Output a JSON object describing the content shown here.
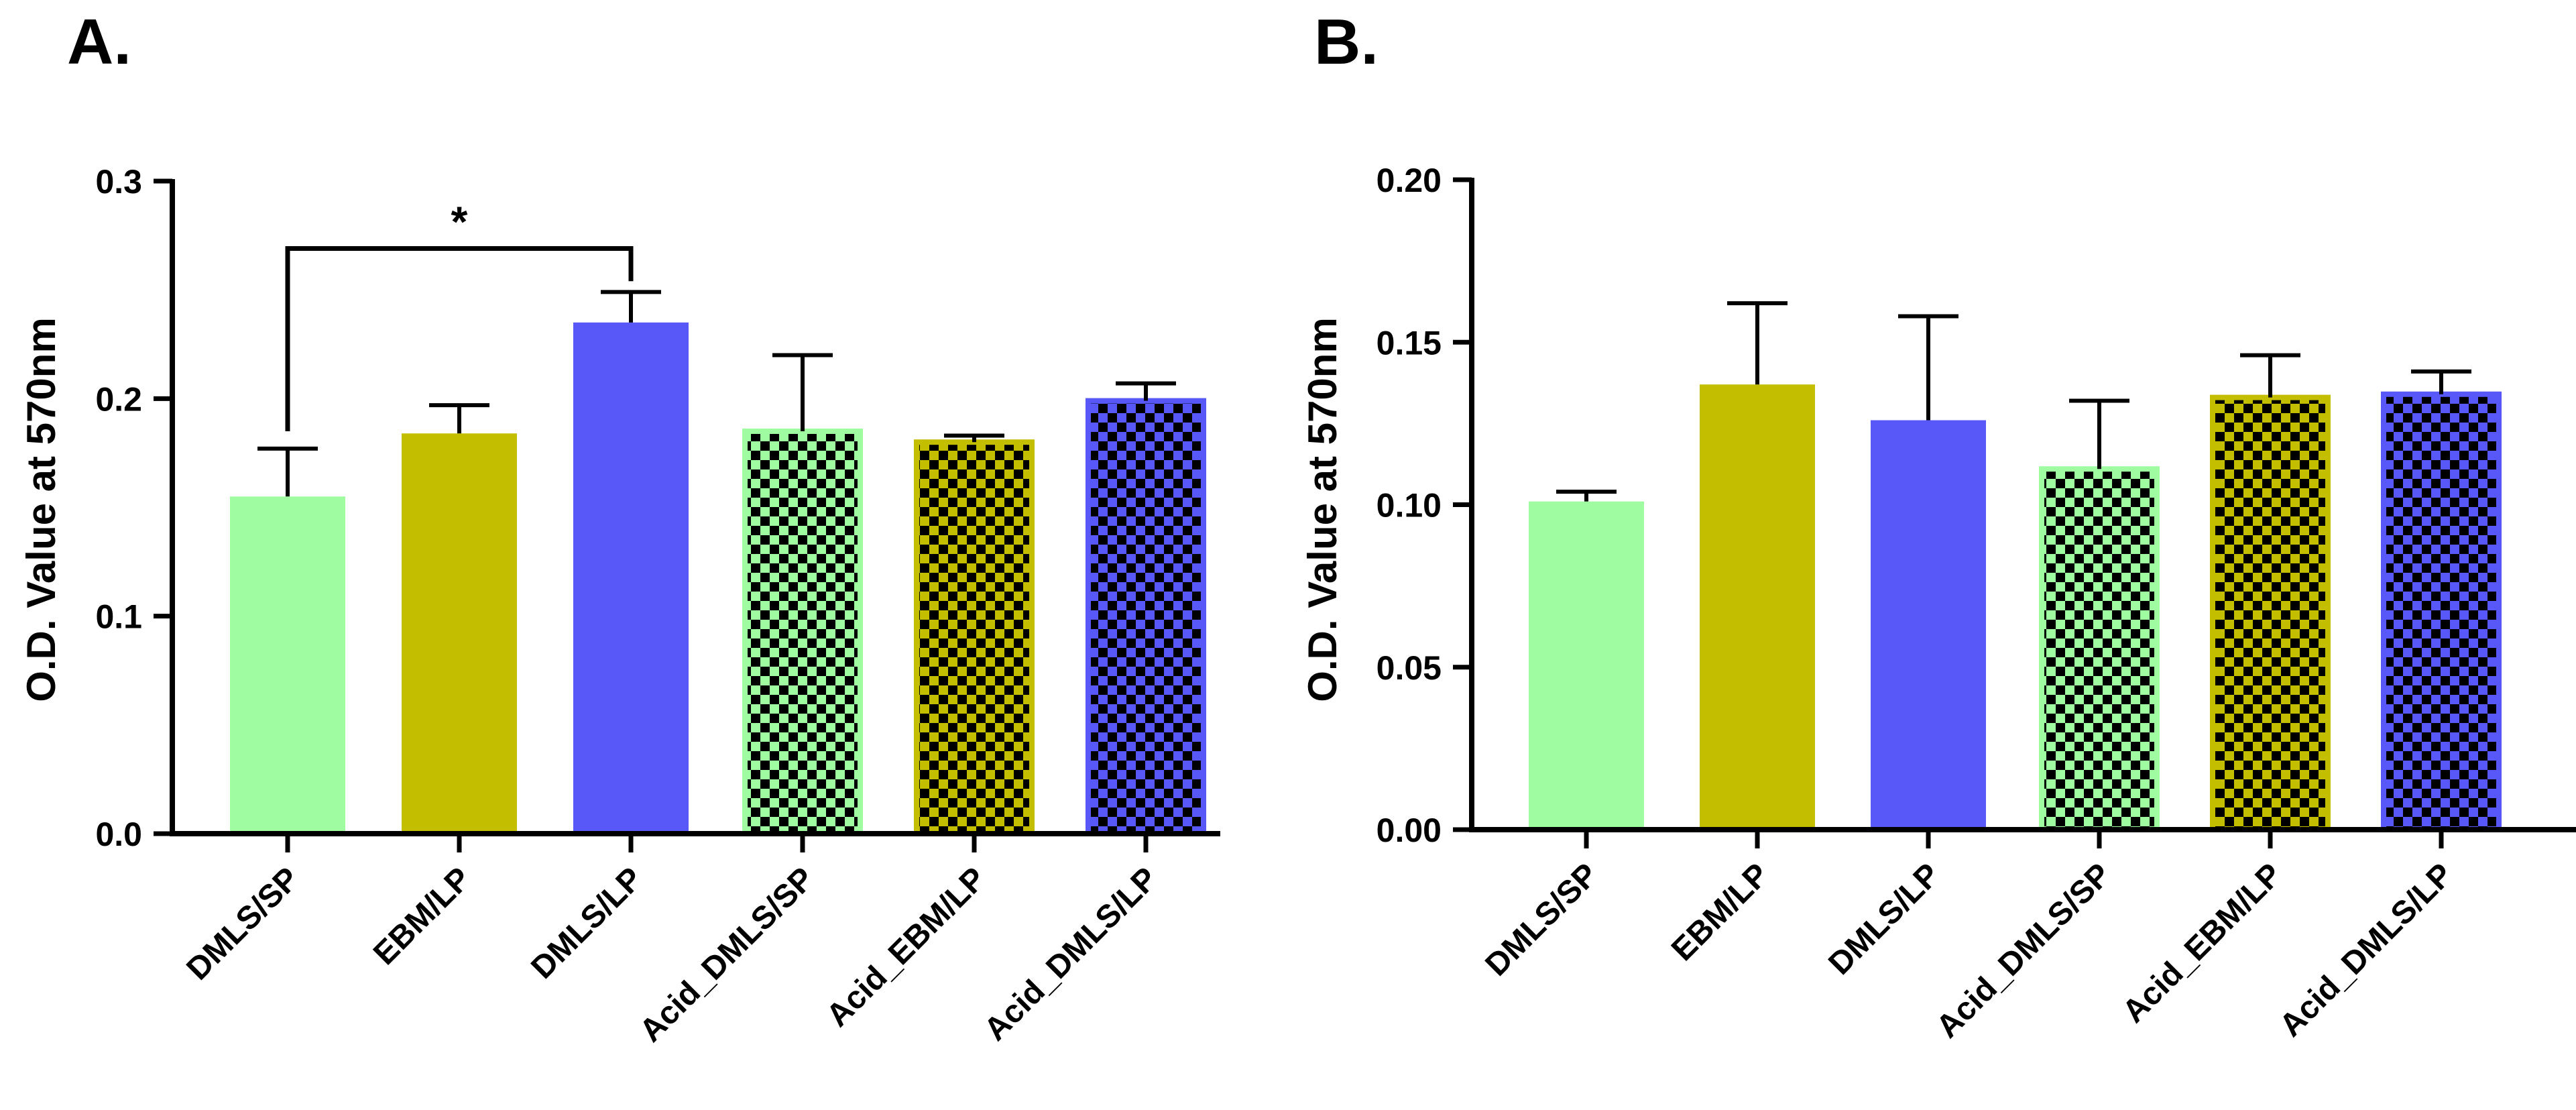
{
  "chart_data": [
    {
      "panel_label": "A.",
      "type": "bar",
      "ylabel": "O.D. Value at 570nm",
      "ylim": [
        0,
        0.3
      ],
      "yticks": [
        0.0,
        0.1,
        0.2,
        0.3
      ],
      "ytick_labels": [
        "0.0",
        "0.1",
        "0.2",
        "0.3"
      ],
      "categories": [
        "DMLS/SP",
        "EBM/LP",
        "DMLS/LP",
        "Acid_DMLS/SP",
        "Acid_EBM/LP",
        "Acid_DMLS/LP"
      ],
      "values": [
        0.155,
        0.184,
        0.235,
        0.185,
        0.18,
        0.199
      ],
      "errors": [
        0.022,
        0.013,
        0.014,
        0.035,
        0.003,
        0.008
      ],
      "colors": [
        "#a0fca0",
        "#c4be00",
        "#5858f8",
        "#a0fca0",
        "#c4be00",
        "#5858f8"
      ],
      "patterned": [
        false,
        false,
        false,
        true,
        true,
        true
      ],
      "significance": [
        {
          "from": 0,
          "to": 2,
          "label": "*"
        }
      ]
    },
    {
      "panel_label": "B.",
      "type": "bar",
      "ylabel": "O.D. Value at 570nm",
      "ylim": [
        0,
        0.2
      ],
      "yticks": [
        0.0,
        0.05,
        0.1,
        0.15,
        0.2
      ],
      "ytick_labels": [
        "0.00",
        "0.05",
        "0.10",
        "0.15",
        "0.20"
      ],
      "categories": [
        "DMLS/SP",
        "EBM/LP",
        "DMLS/LP",
        "Acid_DMLS/SP",
        "Acid_EBM/LP",
        "Acid_DMLS/LP"
      ],
      "values": [
        0.101,
        0.137,
        0.126,
        0.111,
        0.133,
        0.134
      ],
      "errors": [
        0.003,
        0.025,
        0.032,
        0.021,
        0.013,
        0.007
      ],
      "colors": [
        "#a0fca0",
        "#c4be00",
        "#5858f8",
        "#a0fca0",
        "#c4be00",
        "#5858f8"
      ],
      "patterned": [
        false,
        false,
        false,
        true,
        true,
        true
      ],
      "significance": []
    }
  ]
}
